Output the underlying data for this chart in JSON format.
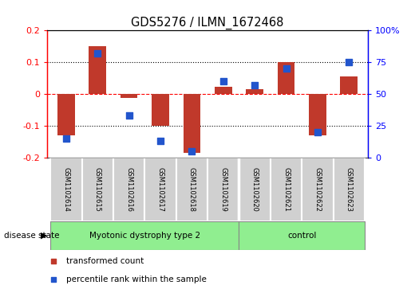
{
  "title": "GDS5276 / ILMN_1672468",
  "samples": [
    "GSM1102614",
    "GSM1102615",
    "GSM1102616",
    "GSM1102617",
    "GSM1102618",
    "GSM1102619",
    "GSM1102620",
    "GSM1102621",
    "GSM1102622",
    "GSM1102623"
  ],
  "red_values": [
    -0.13,
    0.15,
    -0.012,
    -0.1,
    -0.185,
    0.022,
    0.015,
    0.1,
    -0.13,
    0.055
  ],
  "blue_values": [
    15,
    82,
    33,
    13,
    5,
    60,
    57,
    70,
    20,
    75
  ],
  "ylim_left": [
    -0.2,
    0.2
  ],
  "ylim_right": [
    0,
    100
  ],
  "yticks_left": [
    -0.2,
    -0.1,
    0.0,
    0.1,
    0.2
  ],
  "yticks_right": [
    0,
    25,
    50,
    75,
    100
  ],
  "ytick_labels_left": [
    "-0.2",
    "-0.1",
    "0",
    "0.1",
    "0.2"
  ],
  "ytick_labels_right": [
    "0",
    "25",
    "50",
    "75",
    "100%"
  ],
  "group1_label": "Myotonic dystrophy type 2",
  "group1_count": 6,
  "group2_label": "control",
  "group2_count": 4,
  "disease_state_label": "disease state",
  "bar_color": "#C0392B",
  "dot_color": "#2255CC",
  "legend_items": [
    {
      "label": "transformed count",
      "color": "#C0392B"
    },
    {
      "label": "percentile rank within the sample",
      "color": "#2255CC"
    }
  ],
  "bar_width": 0.55,
  "dot_size": 35,
  "sample_box_color": "#D0D0D0",
  "group_box_color": "#90EE90"
}
